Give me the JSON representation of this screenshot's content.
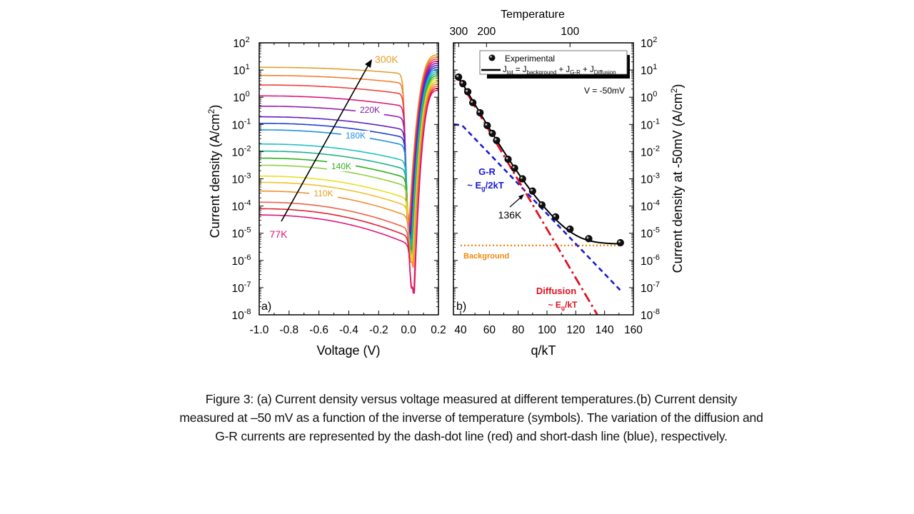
{
  "caption": "Figure 3: (a) Current density versus voltage measured at different temperatures.(b)  Current density measured at –50 mV as a function of the inverse of temperature (symbols). The variation of the diffusion and G-R currents are represented  by the dash-dot line (red) and short-dash  line (blue), respectively.",
  "chart_data": [
    {
      "type": "line",
      "panel_label": "a)",
      "xlabel": "Voltage (V)",
      "ylabel": "Current density (A/cm²)",
      "xlim": [
        -1.0,
        0.2
      ],
      "ylim_log10": [
        -8,
        2
      ],
      "yscale": "log",
      "xticks": [
        "-1.0",
        "-0.8",
        "-0.6",
        "-0.4",
        "-0.2",
        "0.0",
        "0.2"
      ],
      "xtick_values": [
        -1.0,
        -0.8,
        -0.6,
        -0.4,
        -0.2,
        0.0,
        0.2
      ],
      "yticks_exp": [
        2,
        1,
        0,
        -1,
        -2,
        -3,
        -4,
        -5,
        -6,
        -7,
        -8
      ],
      "annotations": [
        {
          "text": "300K",
          "color": "#e0a020"
        },
        {
          "text": "220K",
          "color": "#7a1fa0"
        },
        {
          "text": "180K",
          "color": "#1e90e0"
        },
        {
          "text": "140K",
          "color": "#33b020"
        },
        {
          "text": "110K",
          "color": "#e0a020"
        },
        {
          "text": "77K",
          "color": "#e0167a"
        }
      ],
      "arrow": {
        "from_label": "77K",
        "to_label": "300K",
        "color": "#000000"
      },
      "series_reverse_bias_J_at_minus1V": [
        {
          "color": "#e0a030",
          "log10_J": 1.1
        },
        {
          "color": "#f08030",
          "log10_J": 0.8
        },
        {
          "color": "#f04040",
          "log10_J": 0.45
        },
        {
          "color": "#e01878",
          "log10_J": 0.05
        },
        {
          "color": "#9020b0",
          "log10_J": -0.33
        },
        {
          "color": "#6020c0",
          "log10_J": -0.72
        },
        {
          "color": "#2040d0",
          "log10_J": -0.96
        },
        {
          "color": "#1e90e0",
          "log10_J": -1.2
        },
        {
          "color": "#20c0c0",
          "log10_J": -1.72
        },
        {
          "color": "#20b090",
          "log10_J": -1.98
        },
        {
          "color": "#30b020",
          "log10_J": -2.24
        },
        {
          "color": "#90d040",
          "log10_J": -2.5
        },
        {
          "color": "#e8e020",
          "log10_J": -2.9
        },
        {
          "color": "#f0c030",
          "log10_J": -3.13
        },
        {
          "color": "#f09030",
          "log10_J": -3.45
        },
        {
          "color": "#f06040",
          "log10_J": -3.86
        },
        {
          "color": "#e02030",
          "log10_J": -4.1
        },
        {
          "color": "#e0167a",
          "log10_J": -4.33
        }
      ]
    },
    {
      "type": "scatter",
      "panel_label": "b)",
      "xlabel": "q/kT",
      "ylabel": "Current density at -50mV (A/cm²)",
      "top_xlabel": "Temperature",
      "top_xticks": [
        {
          "label": "300",
          "qkT": 38.7
        },
        {
          "label": "200",
          "qkT": 58.0
        },
        {
          "label": "100",
          "qkT": 116.0
        }
      ],
      "xlim": [
        38,
        160
      ],
      "ylim_log10": [
        -8,
        2
      ],
      "yscale": "log",
      "xticks": [
        "40",
        "60",
        "80",
        "100",
        "120",
        "140",
        "160"
      ],
      "xtick_values": [
        40,
        60,
        80,
        100,
        120,
        140,
        160
      ],
      "yticks_exp": [
        2,
        1,
        0,
        -1,
        -2,
        -3,
        -4,
        -5,
        -6,
        -7,
        -8
      ],
      "legend": {
        "placement": "top-right",
        "entries": [
          {
            "label": "Experimental",
            "marker": "sphere"
          },
          {
            "label_parts": [
              "J",
              "tot",
              " = J",
              "background",
              " + J",
              "G-R",
              " + J",
              "Diffusion"
            ],
            "marker": "line"
          }
        ]
      },
      "condition_label": "V = -50mV",
      "experimental": {
        "qkT": [
          38.6,
          41.6,
          45.0,
          48.5,
          53.5,
          58.5,
          62.0,
          65.0,
          73.0,
          77.5,
          83.0,
          90.0,
          96.5,
          106.0,
          116.0,
          129.0,
          151.0
        ],
        "log10_J": [
          0.74,
          0.5,
          0.2,
          -0.2,
          -0.57,
          -1.04,
          -1.33,
          -1.59,
          -2.28,
          -2.61,
          -3.0,
          -3.45,
          -3.96,
          -4.4,
          -4.85,
          -5.2,
          -5.35
        ]
      },
      "fit_total": {
        "color": "#000000",
        "style": "solid"
      },
      "gr_line": {
        "label": "G-R",
        "sublabel_parts": [
          "~ E",
          "g",
          "/2kT"
        ],
        "color": "#1a1ad0",
        "style": "short-dash",
        "qkT": [
          38,
          151
        ],
        "log10_J": [
          -1.0,
          -7.1
        ]
      },
      "diffusion_line": {
        "label": "Diffusion",
        "sublabel_parts": [
          "~ E",
          "g",
          "/kT"
        ],
        "color": "#e01020",
        "style": "dash-dot",
        "qkT": [
          38,
          135
        ],
        "log10_J": [
          0.74,
          -8.0
        ]
      },
      "background_line": {
        "label": "Background",
        "color": "#f08a10",
        "style": "dotted",
        "log10_J": -5.45
      },
      "annotation": {
        "text": "136K"
      }
    }
  ]
}
